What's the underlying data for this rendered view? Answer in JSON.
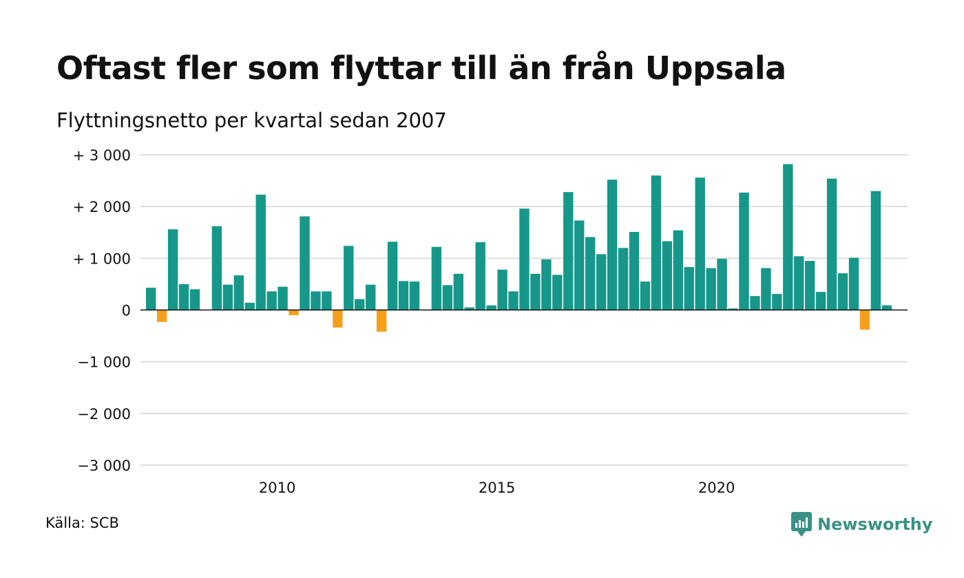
{
  "header": {
    "title": "Oftast fler som flyttar till än från Uppsala",
    "subtitle": "Flyttningsnetto per kvartal sedan 2007"
  },
  "footer": {
    "source": "Källa: SCB",
    "brand": "Newsworthy"
  },
  "colors": {
    "positive": "#17978a",
    "negative": "#f5a01c",
    "grid": "#dddddd",
    "brand": "#3a9185"
  },
  "chart_data": {
    "type": "bar",
    "title": "Oftast fler som flyttar till än från Uppsala",
    "subtitle": "Flyttningsnetto per kvartal sedan 2007",
    "x_start": "2007 Q1",
    "period": "quarter",
    "ylim": [
      -3000,
      3000
    ],
    "y_ticks": [
      3000,
      2000,
      1000,
      0,
      -1000,
      -2000,
      -3000
    ],
    "y_tick_labels": [
      "+ 3 000",
      "+ 2 000",
      "+ 1 000",
      "0",
      "−1 000",
      "−2 000",
      "−3 000"
    ],
    "x_tick_labels": [
      "2010",
      "2015",
      "2020"
    ],
    "grid": true,
    "legend": "none",
    "categories": [
      "2007 Q1",
      "2007 Q2",
      "2007 Q3",
      "2007 Q4",
      "2008 Q1",
      "2008 Q2",
      "2008 Q3",
      "2008 Q4",
      "2009 Q1",
      "2009 Q2",
      "2009 Q3",
      "2009 Q4",
      "2010 Q1",
      "2010 Q2",
      "2010 Q3",
      "2010 Q4",
      "2011 Q1",
      "2011 Q2",
      "2011 Q3",
      "2011 Q4",
      "2012 Q1",
      "2012 Q2",
      "2012 Q3",
      "2012 Q4",
      "2013 Q1",
      "2013 Q2",
      "2013 Q3",
      "2013 Q4",
      "2014 Q1",
      "2014 Q2",
      "2014 Q3",
      "2014 Q4",
      "2015 Q1",
      "2015 Q2",
      "2015 Q3",
      "2015 Q4",
      "2016 Q1",
      "2016 Q2",
      "2016 Q3",
      "2016 Q4",
      "2017 Q1",
      "2017 Q2",
      "2017 Q3",
      "2017 Q4",
      "2018 Q1",
      "2018 Q2",
      "2018 Q3",
      "2018 Q4",
      "2019 Q1",
      "2019 Q2",
      "2019 Q3",
      "2019 Q4",
      "2020 Q1",
      "2020 Q2",
      "2020 Q3",
      "2020 Q4",
      "2021 Q1",
      "2021 Q2",
      "2021 Q3",
      "2021 Q4",
      "2022 Q1",
      "2022 Q2",
      "2022 Q3",
      "2022 Q4",
      "2023 Q1",
      "2023 Q2",
      "2023 Q3",
      "2023 Q4",
      "2024 Q1",
      "2024 Q2"
    ],
    "values": [
      430,
      -230,
      1560,
      500,
      400,
      0,
      1620,
      490,
      670,
      140,
      2230,
      360,
      450,
      -100,
      1810,
      360,
      360,
      -340,
      1240,
      210,
      490,
      -420,
      1320,
      560,
      550,
      0,
      1220,
      480,
      700,
      50,
      1310,
      90,
      780,
      360,
      1960,
      700,
      980,
      680,
      2280,
      1730,
      1410,
      1080,
      2520,
      1200,
      1510,
      550,
      2600,
      1330,
      1540,
      830,
      2560,
      810,
      990,
      30,
      2270,
      270,
      810,
      310,
      2820,
      1040,
      950,
      350,
      2540,
      710,
      1010,
      -380,
      2300,
      90,
      0,
      0
    ]
  }
}
